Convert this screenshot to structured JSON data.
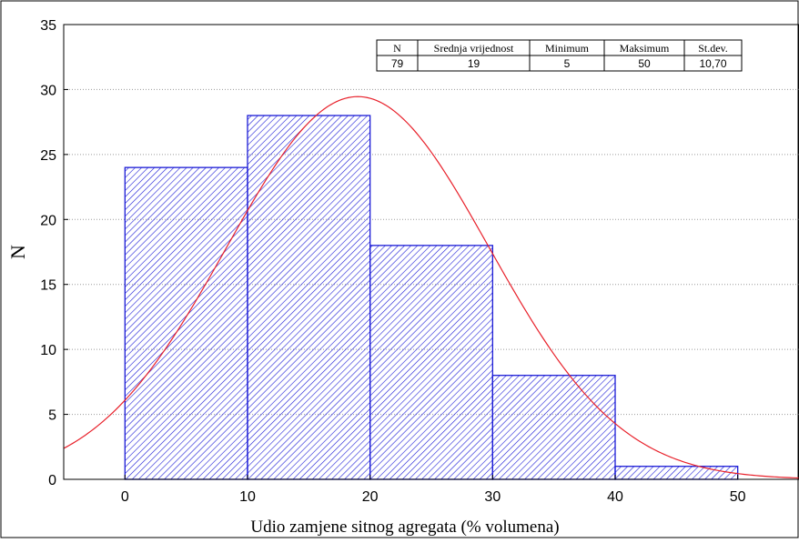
{
  "chart_data": {
    "type": "bar",
    "subtype": "histogram",
    "bins": [
      {
        "start": 0,
        "end": 10,
        "count": 24
      },
      {
        "start": 10,
        "end": 20,
        "count": 28
      },
      {
        "start": 20,
        "end": 30,
        "count": 18
      },
      {
        "start": 30,
        "end": 40,
        "count": 8
      },
      {
        "start": 40,
        "end": 50,
        "count": 1
      }
    ],
    "xlabel": "Udio zamjene sitnog agregata (% volumena)",
    "ylabel": "N",
    "xlim": [
      -5,
      55
    ],
    "ylim": [
      0,
      35
    ],
    "xticks": [
      0,
      10,
      20,
      30,
      40,
      50
    ],
    "yticks": [
      0,
      5,
      10,
      15,
      20,
      25,
      30,
      35
    ],
    "grid": "horizontal dotted",
    "fit_curve": {
      "type": "normal",
      "mean": 19,
      "std": 10.7,
      "n": 79,
      "bin_width": 10
    },
    "colors": {
      "bar_stroke": "#1a1ad6",
      "bar_hatch": "#1a1ad6",
      "curve": "#e8202a",
      "grid": "#9a9a9a"
    },
    "stats_table": {
      "headers": [
        "N",
        "Srednja vrijednost",
        "Minimum",
        "Maksimum",
        "St.dev."
      ],
      "values": [
        "79",
        "19",
        "5",
        "50",
        "10,70"
      ],
      "placement": "top-right"
    }
  }
}
